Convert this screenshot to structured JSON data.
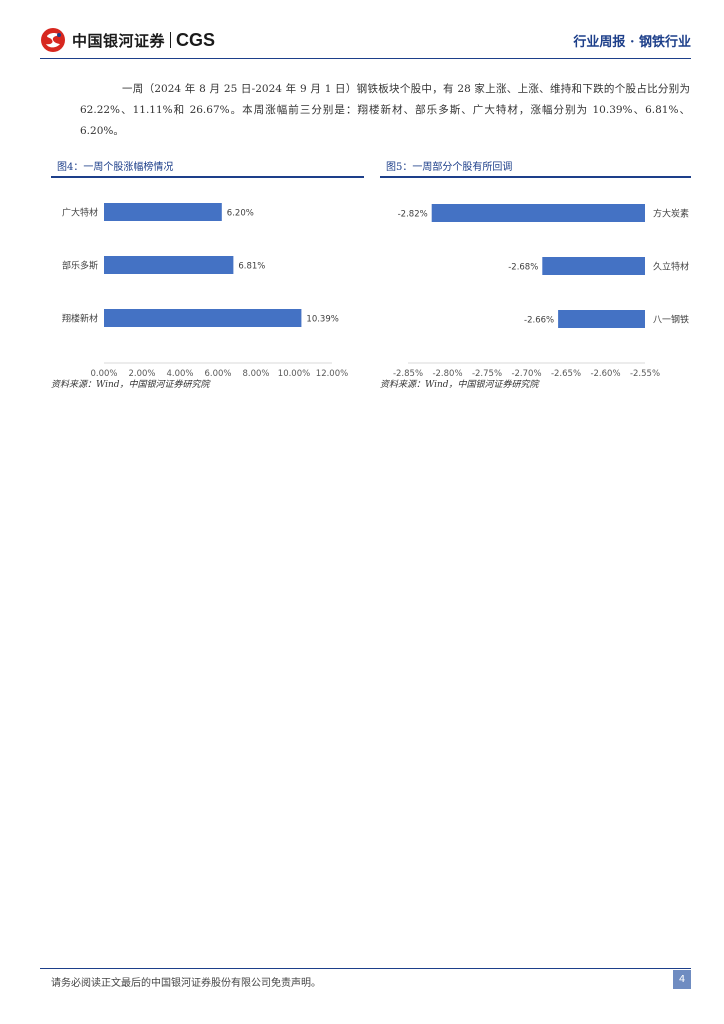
{
  "header": {
    "brand_cn": "中国银河证券",
    "brand_en": "CGS",
    "report_tag": "行业周报 · 钢铁行业",
    "colors": {
      "brand_red": "#d7271f",
      "brand_blue": "#1d3f8a"
    }
  },
  "paragraph": "一周（2024 年 8 月 25 日-2024 年 9 月 1 日）钢铁板块个股中，有 28 家上涨、上涨、维持和下跌的个股占比分别为 62.22%、11.11%和 26.67%。本周涨幅前三分别是：翔楼新材、部乐多斯、广大特材，涨幅分别为 10.39%、6.81%、6.20%。",
  "figures": {
    "left": {
      "title": "图4：一周个股涨幅榜情况",
      "source": "资料来源：Wind，中国银河证券研究院"
    },
    "right": {
      "title": "图5：一周部分个股有所回调",
      "source": "资料来源：Wind，中国银河证券研究院"
    }
  },
  "chart_data": [
    {
      "type": "bar",
      "orientation": "horizontal",
      "categories": [
        "广大特材",
        "部乐多斯",
        "翔楼新材"
      ],
      "values": [
        6.2,
        6.81,
        10.39
      ],
      "value_labels": [
        "6.20%",
        "6.81%",
        "10.39%"
      ],
      "xlim": [
        0,
        12
      ],
      "xticks": [
        "0.00%",
        "2.00%",
        "4.00%",
        "6.00%",
        "8.00%",
        "10.00%",
        "12.00%"
      ],
      "bar_color": "#4472c4",
      "grid": false
    },
    {
      "type": "bar",
      "orientation": "horizontal",
      "categories": [
        "方大炭素",
        "久立特材",
        "八一钢铁"
      ],
      "values": [
        -2.82,
        -2.68,
        -2.66
      ],
      "value_labels": [
        "-2.82%",
        "-2.68%",
        "-2.66%"
      ],
      "xlim": [
        -2.85,
        -2.55
      ],
      "xticks": [
        "-2.85%",
        "-2.80%",
        "-2.75%",
        "-2.70%",
        "-2.65%",
        "-2.60%",
        "-2.55%"
      ],
      "bar_color": "#4472c4",
      "grid": false
    }
  ],
  "footer": {
    "disclaimer": "请务必阅读正文最后的中国银河证券股份有限公司免责声明。",
    "page_number": "4"
  }
}
